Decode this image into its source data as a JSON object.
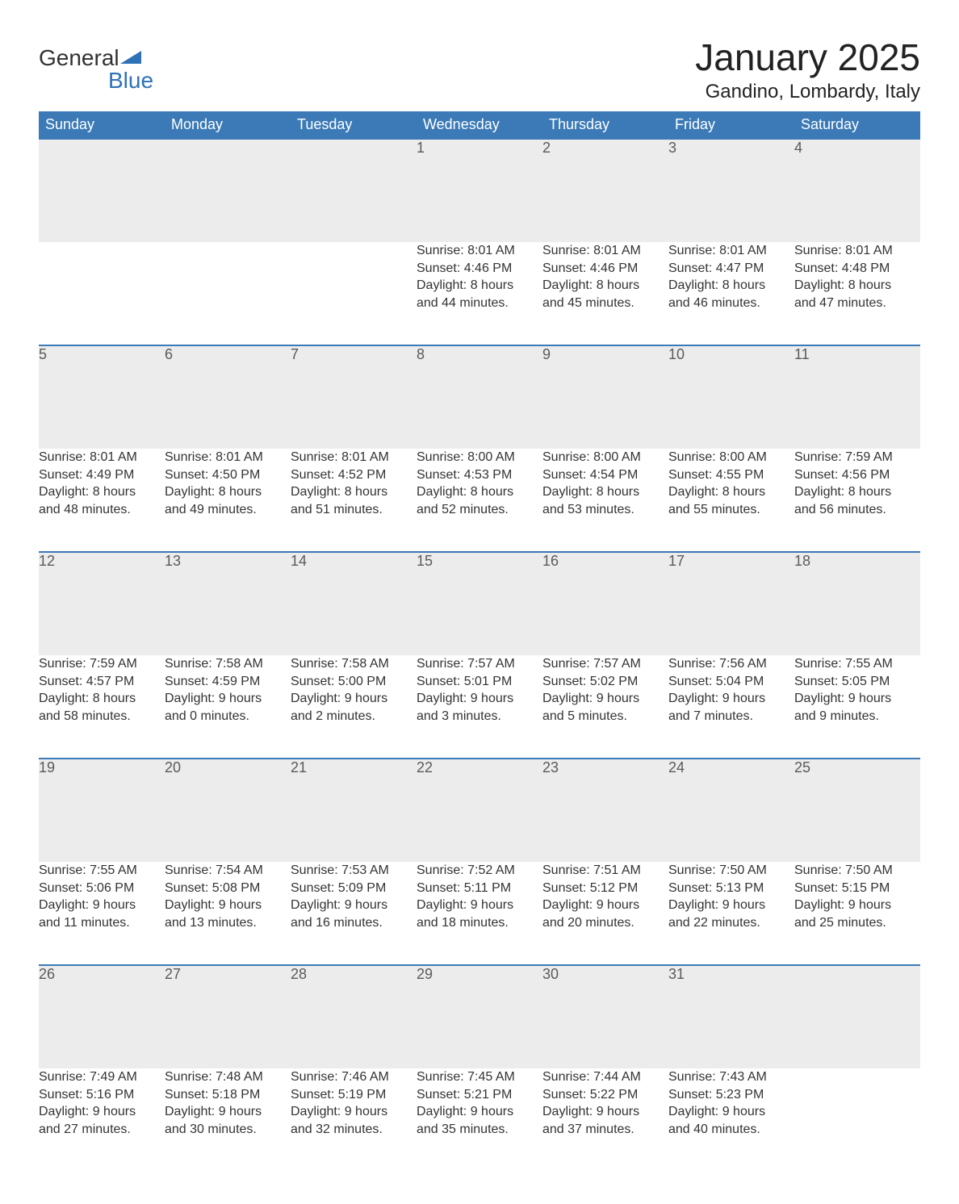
{
  "logo": {
    "word1": "General",
    "word2": "Blue"
  },
  "title": "January 2025",
  "location": "Gandino, Lombardy, Italy",
  "colors": {
    "header_bg": "#3b7ab7",
    "header_text": "#ffffff",
    "daynum_bg": "#ececec",
    "daynum_border": "#3b7ab7",
    "body_text": "#333333",
    "logo_blue": "#2f71b6"
  },
  "weekday_labels": [
    "Sunday",
    "Monday",
    "Tuesday",
    "Wednesday",
    "Thursday",
    "Friday",
    "Saturday"
  ],
  "weeks": [
    [
      null,
      null,
      null,
      {
        "n": "1",
        "sr": "Sunrise: 8:01 AM",
        "ss": "Sunset: 4:46 PM",
        "d1": "Daylight: 8 hours",
        "d2": "and 44 minutes."
      },
      {
        "n": "2",
        "sr": "Sunrise: 8:01 AM",
        "ss": "Sunset: 4:46 PM",
        "d1": "Daylight: 8 hours",
        "d2": "and 45 minutes."
      },
      {
        "n": "3",
        "sr": "Sunrise: 8:01 AM",
        "ss": "Sunset: 4:47 PM",
        "d1": "Daylight: 8 hours",
        "d2": "and 46 minutes."
      },
      {
        "n": "4",
        "sr": "Sunrise: 8:01 AM",
        "ss": "Sunset: 4:48 PM",
        "d1": "Daylight: 8 hours",
        "d2": "and 47 minutes."
      }
    ],
    [
      {
        "n": "5",
        "sr": "Sunrise: 8:01 AM",
        "ss": "Sunset: 4:49 PM",
        "d1": "Daylight: 8 hours",
        "d2": "and 48 minutes."
      },
      {
        "n": "6",
        "sr": "Sunrise: 8:01 AM",
        "ss": "Sunset: 4:50 PM",
        "d1": "Daylight: 8 hours",
        "d2": "and 49 minutes."
      },
      {
        "n": "7",
        "sr": "Sunrise: 8:01 AM",
        "ss": "Sunset: 4:52 PM",
        "d1": "Daylight: 8 hours",
        "d2": "and 51 minutes."
      },
      {
        "n": "8",
        "sr": "Sunrise: 8:00 AM",
        "ss": "Sunset: 4:53 PM",
        "d1": "Daylight: 8 hours",
        "d2": "and 52 minutes."
      },
      {
        "n": "9",
        "sr": "Sunrise: 8:00 AM",
        "ss": "Sunset: 4:54 PM",
        "d1": "Daylight: 8 hours",
        "d2": "and 53 minutes."
      },
      {
        "n": "10",
        "sr": "Sunrise: 8:00 AM",
        "ss": "Sunset: 4:55 PM",
        "d1": "Daylight: 8 hours",
        "d2": "and 55 minutes."
      },
      {
        "n": "11",
        "sr": "Sunrise: 7:59 AM",
        "ss": "Sunset: 4:56 PM",
        "d1": "Daylight: 8 hours",
        "d2": "and 56 minutes."
      }
    ],
    [
      {
        "n": "12",
        "sr": "Sunrise: 7:59 AM",
        "ss": "Sunset: 4:57 PM",
        "d1": "Daylight: 8 hours",
        "d2": "and 58 minutes."
      },
      {
        "n": "13",
        "sr": "Sunrise: 7:58 AM",
        "ss": "Sunset: 4:59 PM",
        "d1": "Daylight: 9 hours",
        "d2": "and 0 minutes."
      },
      {
        "n": "14",
        "sr": "Sunrise: 7:58 AM",
        "ss": "Sunset: 5:00 PM",
        "d1": "Daylight: 9 hours",
        "d2": "and 2 minutes."
      },
      {
        "n": "15",
        "sr": "Sunrise: 7:57 AM",
        "ss": "Sunset: 5:01 PM",
        "d1": "Daylight: 9 hours",
        "d2": "and 3 minutes."
      },
      {
        "n": "16",
        "sr": "Sunrise: 7:57 AM",
        "ss": "Sunset: 5:02 PM",
        "d1": "Daylight: 9 hours",
        "d2": "and 5 minutes."
      },
      {
        "n": "17",
        "sr": "Sunrise: 7:56 AM",
        "ss": "Sunset: 5:04 PM",
        "d1": "Daylight: 9 hours",
        "d2": "and 7 minutes."
      },
      {
        "n": "18",
        "sr": "Sunrise: 7:55 AM",
        "ss": "Sunset: 5:05 PM",
        "d1": "Daylight: 9 hours",
        "d2": "and 9 minutes."
      }
    ],
    [
      {
        "n": "19",
        "sr": "Sunrise: 7:55 AM",
        "ss": "Sunset: 5:06 PM",
        "d1": "Daylight: 9 hours",
        "d2": "and 11 minutes."
      },
      {
        "n": "20",
        "sr": "Sunrise: 7:54 AM",
        "ss": "Sunset: 5:08 PM",
        "d1": "Daylight: 9 hours",
        "d2": "and 13 minutes."
      },
      {
        "n": "21",
        "sr": "Sunrise: 7:53 AM",
        "ss": "Sunset: 5:09 PM",
        "d1": "Daylight: 9 hours",
        "d2": "and 16 minutes."
      },
      {
        "n": "22",
        "sr": "Sunrise: 7:52 AM",
        "ss": "Sunset: 5:11 PM",
        "d1": "Daylight: 9 hours",
        "d2": "and 18 minutes."
      },
      {
        "n": "23",
        "sr": "Sunrise: 7:51 AM",
        "ss": "Sunset: 5:12 PM",
        "d1": "Daylight: 9 hours",
        "d2": "and 20 minutes."
      },
      {
        "n": "24",
        "sr": "Sunrise: 7:50 AM",
        "ss": "Sunset: 5:13 PM",
        "d1": "Daylight: 9 hours",
        "d2": "and 22 minutes."
      },
      {
        "n": "25",
        "sr": "Sunrise: 7:50 AM",
        "ss": "Sunset: 5:15 PM",
        "d1": "Daylight: 9 hours",
        "d2": "and 25 minutes."
      }
    ],
    [
      {
        "n": "26",
        "sr": "Sunrise: 7:49 AM",
        "ss": "Sunset: 5:16 PM",
        "d1": "Daylight: 9 hours",
        "d2": "and 27 minutes."
      },
      {
        "n": "27",
        "sr": "Sunrise: 7:48 AM",
        "ss": "Sunset: 5:18 PM",
        "d1": "Daylight: 9 hours",
        "d2": "and 30 minutes."
      },
      {
        "n": "28",
        "sr": "Sunrise: 7:46 AM",
        "ss": "Sunset: 5:19 PM",
        "d1": "Daylight: 9 hours",
        "d2": "and 32 minutes."
      },
      {
        "n": "29",
        "sr": "Sunrise: 7:45 AM",
        "ss": "Sunset: 5:21 PM",
        "d1": "Daylight: 9 hours",
        "d2": "and 35 minutes."
      },
      {
        "n": "30",
        "sr": "Sunrise: 7:44 AM",
        "ss": "Sunset: 5:22 PM",
        "d1": "Daylight: 9 hours",
        "d2": "and 37 minutes."
      },
      {
        "n": "31",
        "sr": "Sunrise: 7:43 AM",
        "ss": "Sunset: 5:23 PM",
        "d1": "Daylight: 9 hours",
        "d2": "and 40 minutes."
      },
      null
    ]
  ]
}
